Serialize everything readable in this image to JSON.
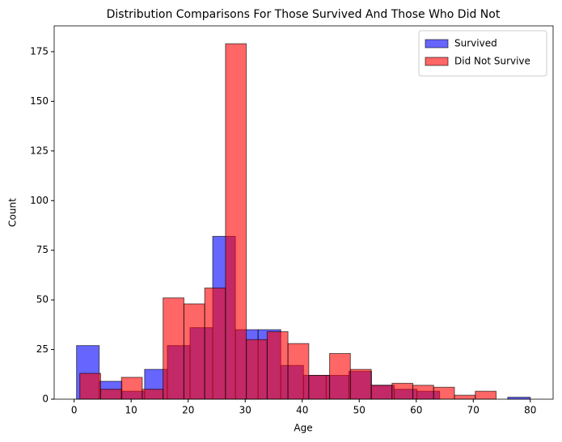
{
  "chart_data": {
    "type": "histogram",
    "title": "Distribution Comparisons For Those Survived And Those Who Did Not",
    "xlabel": "Age",
    "ylabel": "Count",
    "series": [
      {
        "name": "Survived",
        "color": "#0000ff",
        "bins": [
          0.42,
          4.4,
          8.38,
          12.36,
          16.34,
          20.32,
          24.3,
          28.28,
          32.26,
          36.24,
          40.22,
          44.2,
          48.18,
          52.16,
          56.14,
          60.12,
          64.1,
          68.08,
          72.06,
          76.04,
          80
        ],
        "values": [
          27,
          9,
          4,
          15,
          27,
          36,
          82,
          35,
          35,
          17,
          12,
          12,
          14,
          7,
          5,
          4,
          0,
          0,
          0,
          1
        ]
      },
      {
        "name": "Did Not Survive",
        "color": "#ff0000",
        "bins": [
          1,
          4.65,
          8.3,
          11.95,
          15.6,
          19.25,
          22.9,
          26.55,
          30.2,
          33.85,
          37.5,
          41.15,
          44.8,
          48.45,
          52.1,
          55.75,
          59.4,
          63.05,
          66.7,
          70.35,
          74
        ],
        "values": [
          13,
          5,
          11,
          5,
          51,
          48,
          56,
          179,
          30,
          34,
          28,
          12,
          23,
          15,
          7,
          8,
          7,
          6,
          2,
          4
        ]
      }
    ],
    "xlim": [
      -3.5,
      84
    ],
    "xticks": [
      0,
      10,
      20,
      30,
      40,
      50,
      60,
      70,
      80
    ],
    "ylim": [
      0,
      188
    ],
    "yticks": [
      0,
      25,
      50,
      75,
      100,
      125,
      150,
      175
    ],
    "legend": "upper right",
    "grid": false
  }
}
